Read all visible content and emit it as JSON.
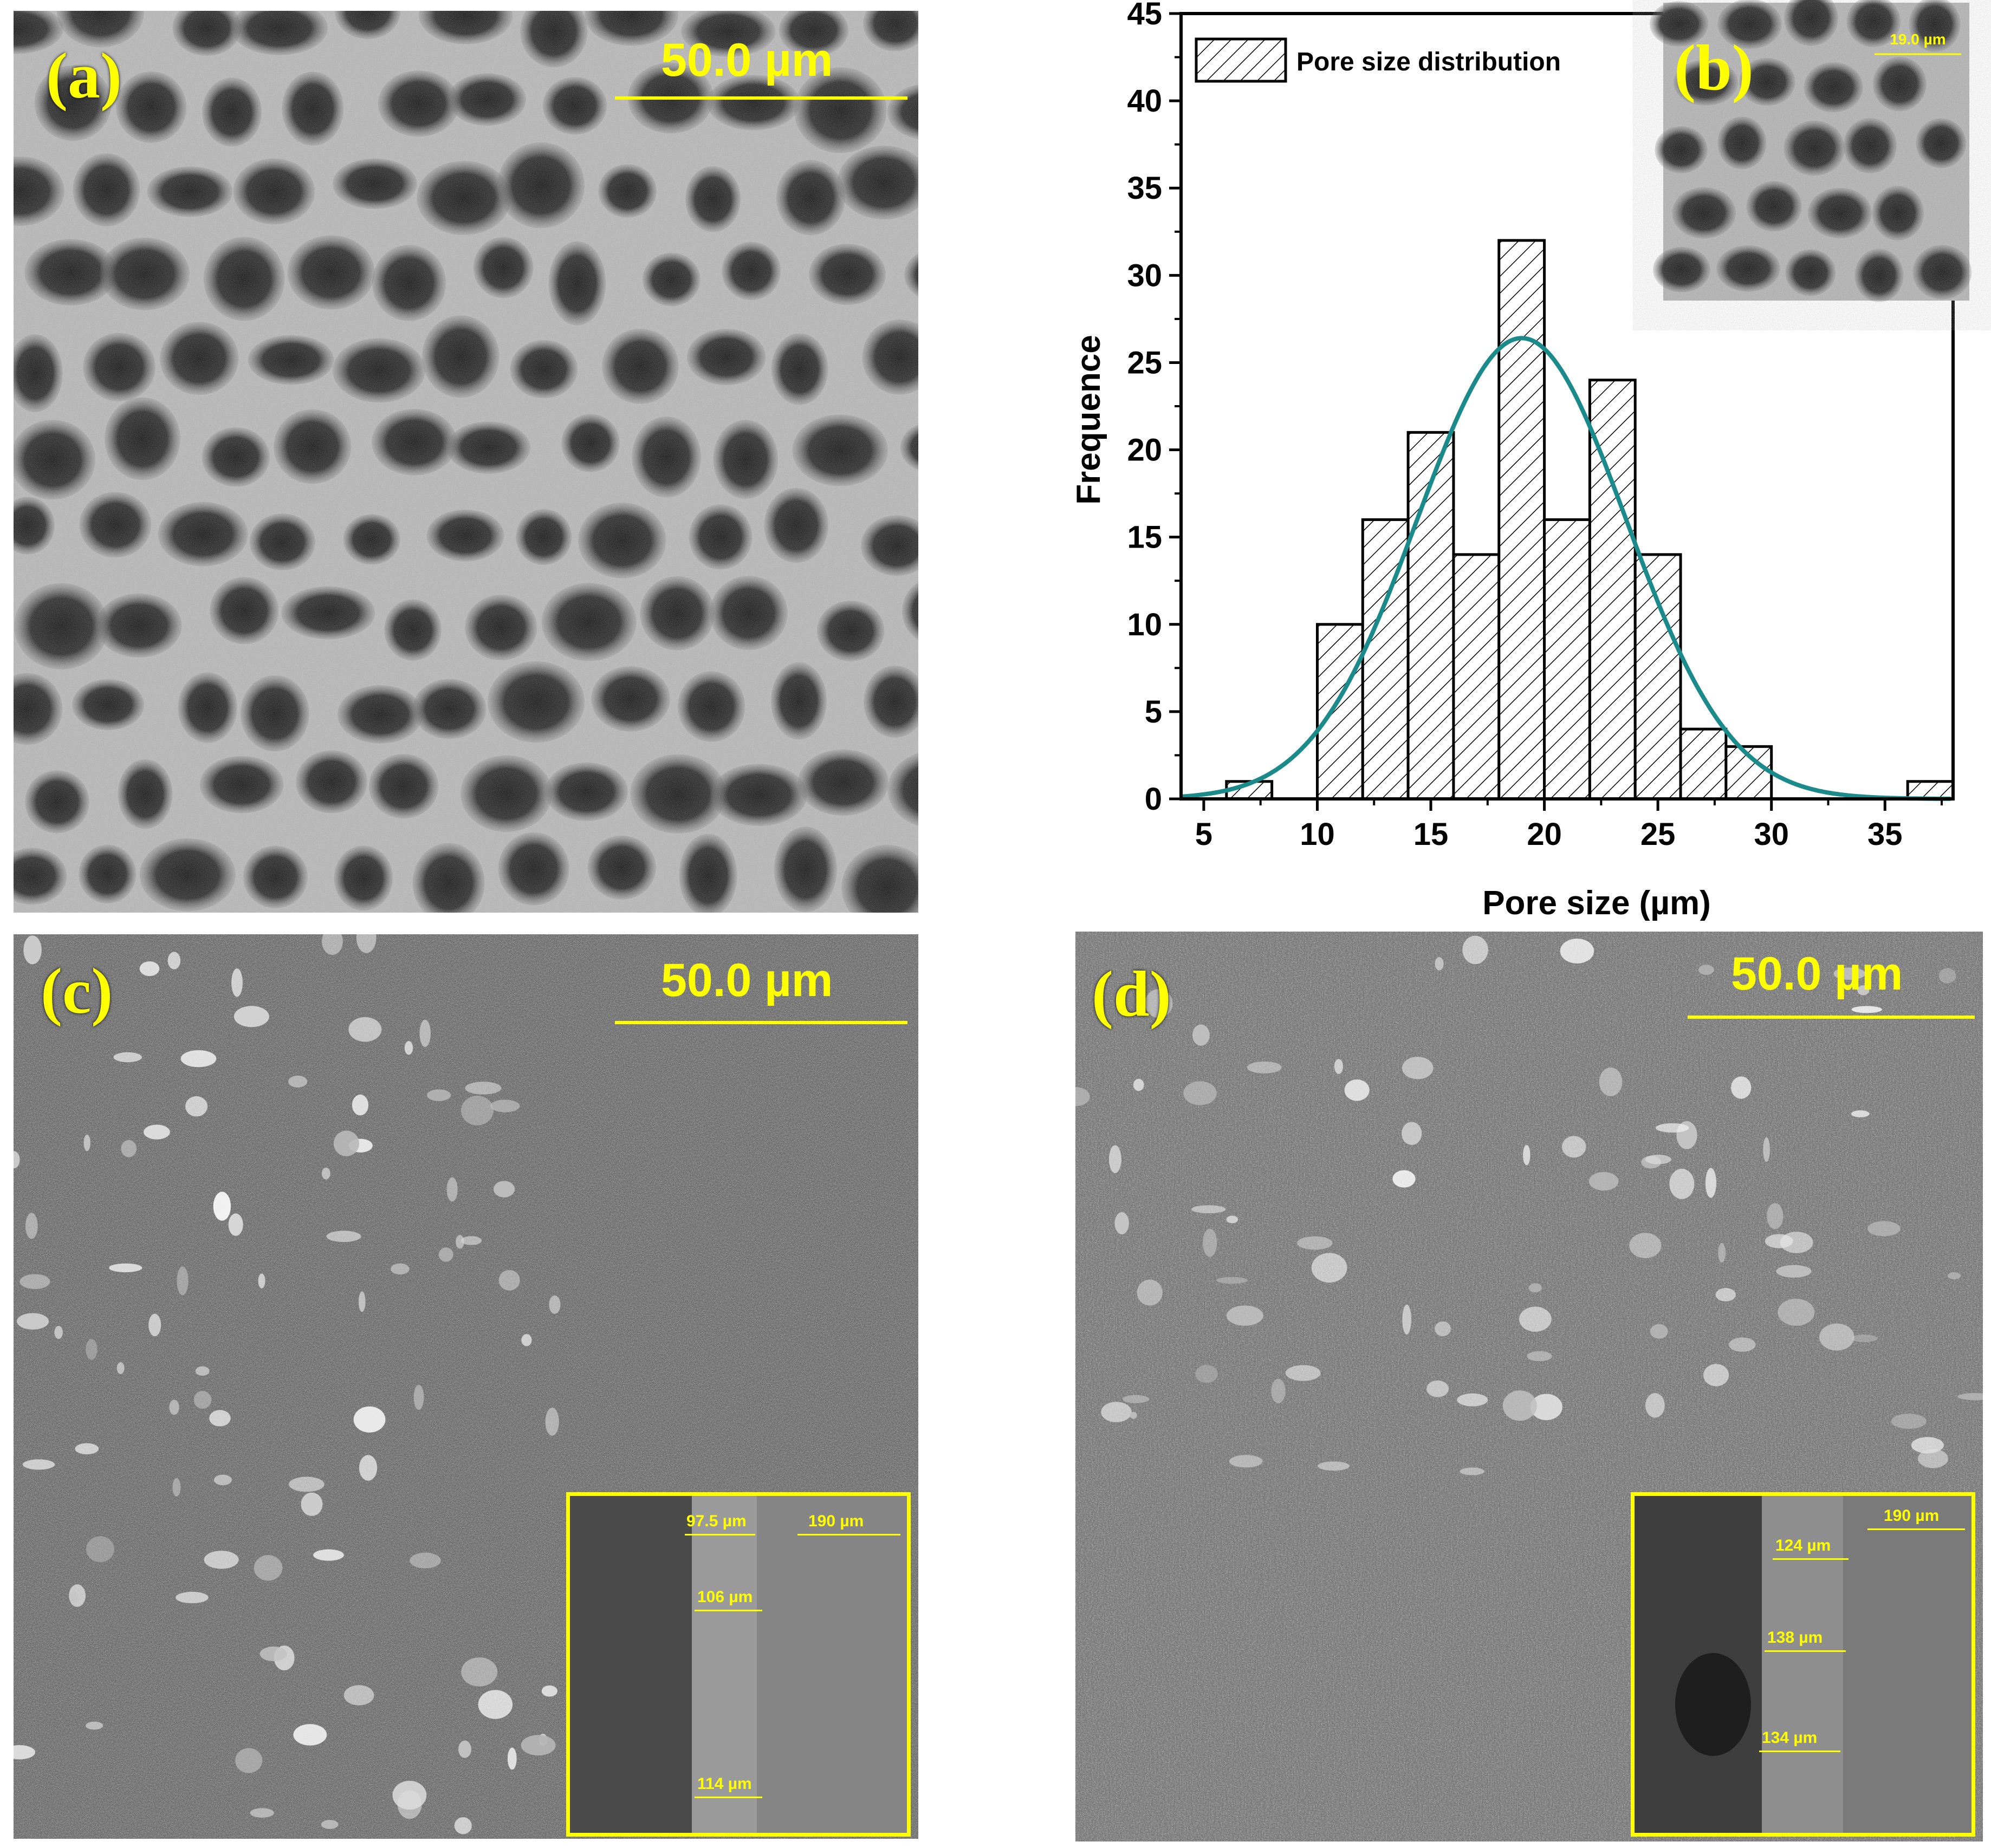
{
  "panels": {
    "a": {
      "label": "(a)",
      "scale": "50.0 µm"
    },
    "b": {
      "label": "(b)",
      "scale": "19.0 µm"
    },
    "c": {
      "label": "(c)",
      "scale": "50.0 µm",
      "inset": {
        "m1": "97.5 µm",
        "m2": "106 µm",
        "m3": "114 µm",
        "m4": "190 µm"
      }
    },
    "d": {
      "label": "(d)",
      "scale": "50.0 µm",
      "inset": {
        "m1": "124 µm",
        "m2": "138 µm",
        "m3": "134 µm",
        "m4": "190 µm"
      }
    }
  },
  "chart_data": {
    "type": "bar",
    "xlabel": "Pore size (µm)",
    "ylabel": "Frequence",
    "legend": "Pore size distribution",
    "legend_position": "top-left",
    "xlim": [
      4,
      38
    ],
    "ylim": [
      0,
      45
    ],
    "xticks": [
      5,
      10,
      15,
      20,
      25,
      30,
      35
    ],
    "yticks": [
      0,
      5,
      10,
      15,
      20,
      25,
      30,
      35,
      40,
      45
    ],
    "bins": [
      {
        "x0": 6,
        "x1": 8,
        "count": 1
      },
      {
        "x0": 10,
        "x1": 12,
        "count": 10
      },
      {
        "x0": 12,
        "x1": 14,
        "count": 16
      },
      {
        "x0": 14,
        "x1": 16,
        "count": 21
      },
      {
        "x0": 16,
        "x1": 18,
        "count": 14
      },
      {
        "x0": 18,
        "x1": 20,
        "count": 32
      },
      {
        "x0": 20,
        "x1": 22,
        "count": 16
      },
      {
        "x0": 22,
        "x1": 24,
        "count": 24
      },
      {
        "x0": 24,
        "x1": 26,
        "count": 14
      },
      {
        "x0": 26,
        "x1": 28,
        "count": 4
      },
      {
        "x0": 28,
        "x1": 30,
        "count": 3
      },
      {
        "x0": 36,
        "x1": 38,
        "count": 1
      }
    ],
    "fit": {
      "type": "normal",
      "mean": 19,
      "sd": 4.6,
      "peak": 26.4,
      "color": "#1a8a8a"
    }
  }
}
